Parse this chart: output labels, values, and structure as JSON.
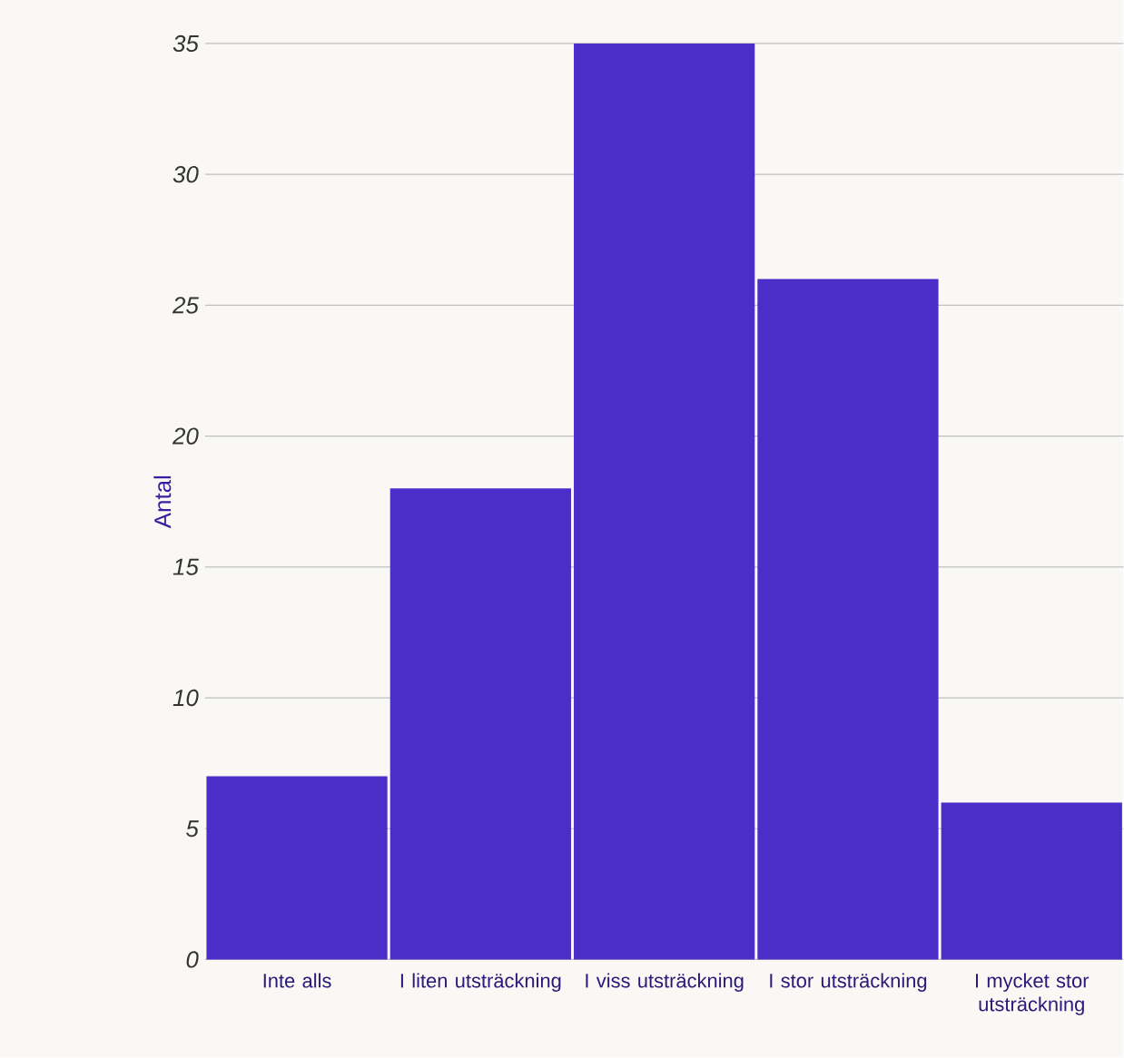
{
  "chart_data": {
    "type": "bar",
    "ylabel": "Antal",
    "categories": [
      "Inte alls",
      "I liten utsträckning",
      "I viss utsträckning",
      "I stor utsträckning",
      "I mycket stor utsträckning"
    ],
    "values": [
      7,
      18,
      35,
      26,
      6
    ],
    "color": "#4a2ec8",
    "ylim": [
      0,
      35
    ],
    "yticks": [
      0,
      5,
      10,
      15,
      20,
      25,
      30,
      35
    ],
    "grid": "y"
  }
}
